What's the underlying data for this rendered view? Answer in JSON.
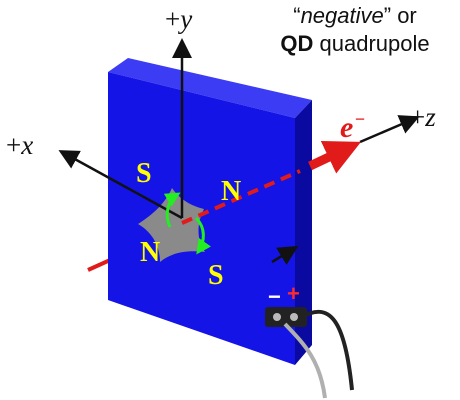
{
  "caption": {
    "line1_open_quote": "“",
    "line1_emphasis": "negative",
    "line1_close_quote": "”",
    "line1_tail": " or",
    "line2_bold": "QD",
    "line2_tail": " quadrupole"
  },
  "axes": {
    "y": {
      "sign": "+",
      "var": "y"
    },
    "x": {
      "sign": "+",
      "var": "x"
    },
    "z": {
      "sign": "+",
      "var": "z"
    }
  },
  "beam": {
    "label_symbol": "e",
    "label_charge": "−"
  },
  "poles": {
    "top_left": "S",
    "top_right": "N",
    "bottom_left": "N",
    "bottom_right": "S"
  },
  "terminals": {
    "negative": "−",
    "positive": "+"
  },
  "colors": {
    "magnet_front": "#1414e6",
    "magnet_side": "#0a0aa0",
    "magnet_top": "#3c3cf5",
    "pole_piece": "#8a8a8a",
    "pole_text": "#ffff00",
    "beam": "#e11a1a",
    "field_arrows": "#22ee22",
    "axis": "#111111"
  }
}
